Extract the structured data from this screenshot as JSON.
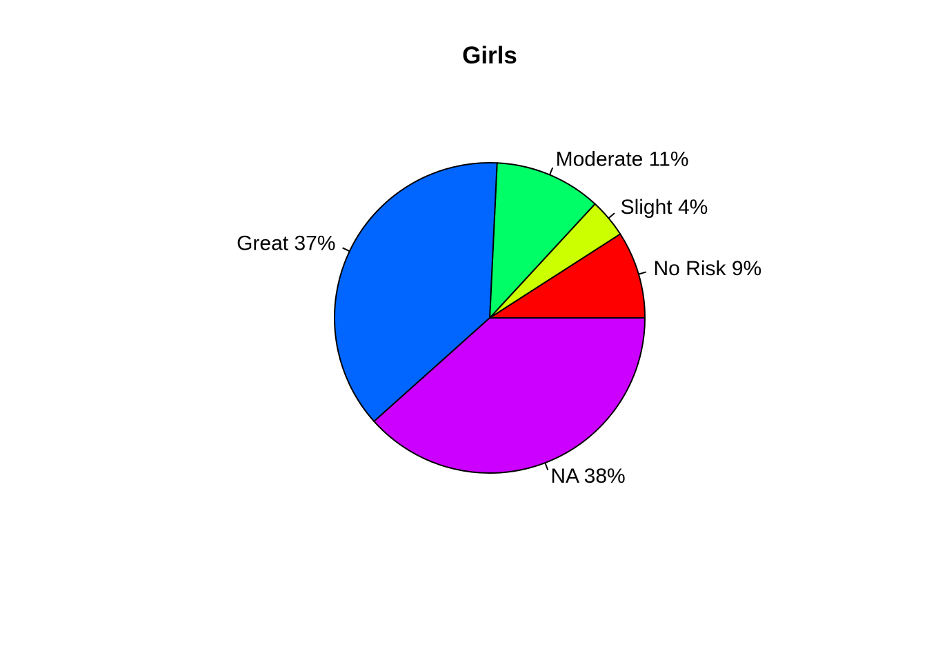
{
  "chart_data": {
    "type": "pie",
    "title": "Girls",
    "slices": [
      {
        "label": "No Risk 9%",
        "value": 9,
        "color": "#FF0000"
      },
      {
        "label": "Slight 4%",
        "value": 4,
        "color": "#CCFF00"
      },
      {
        "label": "Moderate 11%",
        "value": 11,
        "color": "#00FF66"
      },
      {
        "label": "Great 37%",
        "value": 37,
        "color": "#0066FF"
      },
      {
        "label": "NA 38%",
        "value": 38,
        "color": "#CC00FF"
      }
    ],
    "start": "3 o'clock",
    "direction": "counter-clockwise"
  }
}
